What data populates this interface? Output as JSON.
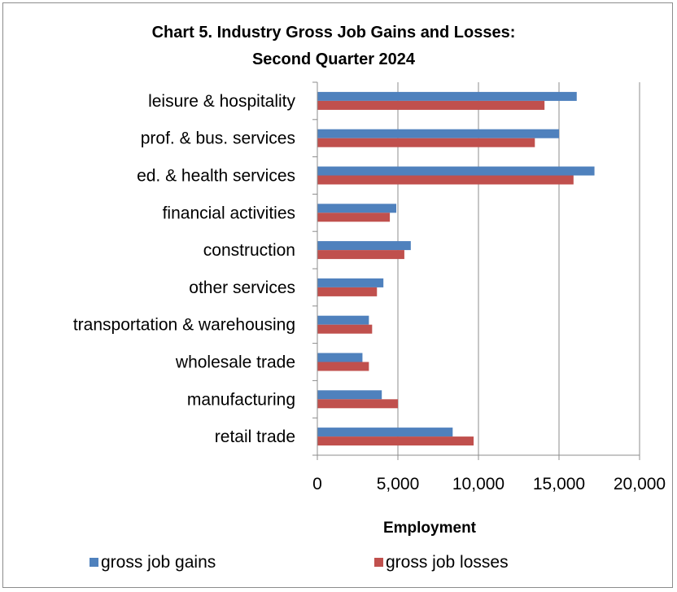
{
  "chart_data": {
    "type": "bar",
    "orientation": "horizontal",
    "title_line1": "Chart 5. Industry Gross Job Gains and Losses:",
    "title_line2": "Second Quarter 2024",
    "xlabel": "Employment",
    "ylabel": "",
    "xlim": [
      0,
      20000
    ],
    "x_ticks": [
      0,
      5000,
      10000,
      15000,
      20000
    ],
    "x_tick_labels": [
      "0",
      "5,000",
      "10,000",
      "15,000",
      "20,000"
    ],
    "grid": "vertical",
    "legend_position": "bottom",
    "categories": [
      "leisure & hospitality",
      "prof. & bus. services",
      "ed. & health services",
      "financial activities",
      "construction",
      "other services",
      "transportation & warehousing",
      "wholesale trade",
      "manufacturing",
      "retail trade"
    ],
    "series": [
      {
        "name": "gross job gains",
        "color": "#4f81bd",
        "values": [
          16100,
          15000,
          17200,
          4900,
          5800,
          4100,
          3200,
          2800,
          4000,
          8400
        ]
      },
      {
        "name": "gross job losses",
        "color": "#c0504d",
        "values": [
          14100,
          13500,
          15900,
          4500,
          5400,
          3700,
          3400,
          3200,
          5000,
          9700
        ]
      }
    ]
  }
}
